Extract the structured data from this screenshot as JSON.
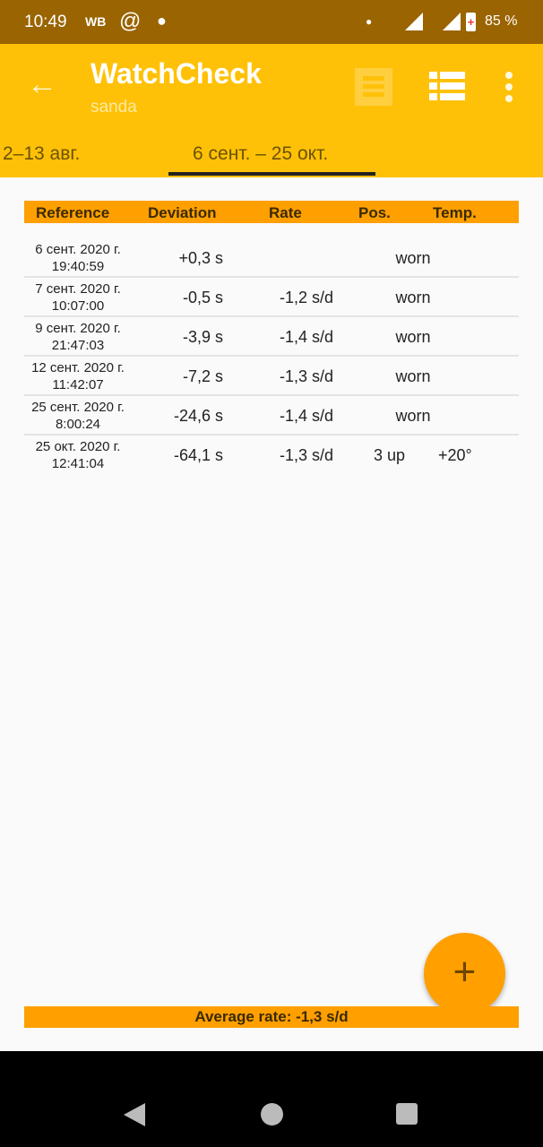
{
  "status_bar": {
    "time": "10:49",
    "carrier": "WB",
    "battery": "85 %"
  },
  "app_bar": {
    "title": "WatchCheck",
    "subtitle": "sanda"
  },
  "tabs": [
    {
      "label": "2–13 авг.",
      "selected": false
    },
    {
      "label": "6 сент. – 25 окт.",
      "selected": true
    }
  ],
  "table": {
    "headers": [
      "Reference",
      "Deviation",
      "Rate",
      "Pos.",
      "Temp."
    ],
    "rows": [
      {
        "date": "6 сент. 2020 г.",
        "time": "19:40:59",
        "deviation": "+0,3 s",
        "rate": "",
        "pos": "worn",
        "temp": ""
      },
      {
        "date": "7 сент. 2020 г.",
        "time": "10:07:00",
        "deviation": "-0,5 s",
        "rate": "-1,2 s/d",
        "pos": "worn",
        "temp": ""
      },
      {
        "date": "9 сент. 2020 г.",
        "time": "21:47:03",
        "deviation": "-3,9 s",
        "rate": "-1,4 s/d",
        "pos": "worn",
        "temp": ""
      },
      {
        "date": "12 сент. 2020 г.",
        "time": "11:42:07",
        "deviation": "-7,2 s",
        "rate": "-1,3 s/d",
        "pos": "worn",
        "temp": ""
      },
      {
        "date": "25 сент. 2020 г.",
        "time": "8:00:24",
        "deviation": "-24,6 s",
        "rate": "-1,4 s/d",
        "pos": "worn",
        "temp": ""
      },
      {
        "date": "25 окт. 2020 г.",
        "time": "12:41:04",
        "deviation": "-64,1 s",
        "rate": "-1,3 s/d",
        "pos": "3 up",
        "temp": "+20°"
      }
    ]
  },
  "footer": {
    "average": "Average rate: -1,3 s/d"
  },
  "fab": {
    "icon": "plus-icon",
    "glyph": "+"
  },
  "colors": {
    "status": "#9a6400",
    "primary": "#ffc107",
    "accent": "#ff9f00"
  }
}
